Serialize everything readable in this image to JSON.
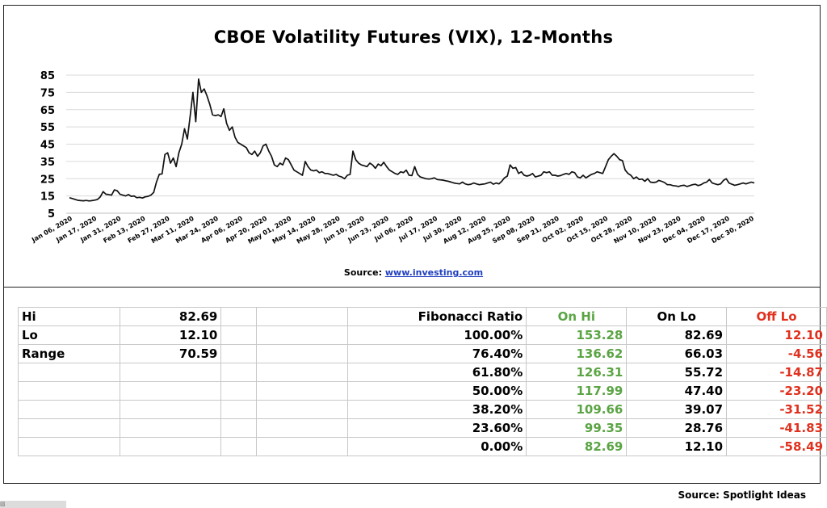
{
  "chart_data": {
    "type": "line",
    "title": "CBOE Volatility Futures (VIX), 12-Months",
    "xlabel": "",
    "ylabel": "",
    "ylim": [
      5,
      85
    ],
    "yticks": [
      5,
      15,
      25,
      35,
      45,
      55,
      65,
      75,
      85
    ],
    "grid": "horizontal",
    "x_tick_labels": [
      "Jan 06, 2020",
      "Jan 17, 2020",
      "Jan 31, 2020",
      "Feb 13, 2020",
      "Feb 27, 2020",
      "Mar 11, 2020",
      "Mar 24, 2020",
      "Apr 06, 2020",
      "Apr 20, 2020",
      "May 01, 2020",
      "May 14, 2020",
      "May 28, 2020",
      "Jun 10, 2020",
      "Jun 23, 2020",
      "Jul 06, 2020",
      "Jul 17, 2020",
      "Jul 30, 2020",
      "Aug 12, 2020",
      "Aug 25, 2020",
      "Sep 08, 2020",
      "Sep 21, 2020",
      "Oct 02, 2020",
      "Oct 15, 2020",
      "Oct 28, 2020",
      "Nov 10, 2020",
      "Nov 23, 2020",
      "Dec 04, 2020",
      "Dec 17, 2020",
      "Dec 30, 2020"
    ],
    "series": [
      {
        "values": [
          14,
          13.5,
          13,
          12.5,
          12.3,
          12.2,
          12.4,
          12.1,
          12.3,
          12.6,
          13,
          14.5,
          17.5,
          16,
          15.8,
          15.5,
          18.5,
          18,
          16,
          15.5,
          15,
          15.8,
          14.8,
          15,
          14,
          14.2,
          13.8,
          14.5,
          14.8,
          15.5,
          17,
          23,
          27.5,
          27.8,
          39,
          40,
          34,
          37,
          32,
          40,
          45,
          54,
          48,
          61,
          75,
          58,
          82.7,
          75,
          77,
          73,
          68,
          62,
          61.5,
          62,
          61,
          65.5,
          57,
          53,
          55,
          49,
          46,
          45,
          44,
          43,
          40,
          39,
          41,
          38,
          40,
          44,
          45,
          41,
          38,
          33,
          32,
          34,
          33,
          37,
          36,
          33,
          30,
          29,
          28,
          27,
          35,
          32,
          30,
          29.5,
          30,
          28.5,
          29,
          28,
          28,
          27.5,
          27,
          27.5,
          26.5,
          26,
          25,
          27,
          27.5,
          41,
          36,
          34,
          33,
          32.5,
          32,
          34,
          33,
          31,
          33.5,
          32.5,
          34.5,
          32,
          30,
          29,
          28,
          27.5,
          29,
          28.5,
          30,
          27,
          26.8,
          32,
          27.5,
          26,
          25.5,
          25,
          24.8,
          25,
          25.5,
          24.5,
          24.3,
          24.2,
          23.8,
          23.5,
          23,
          22.5,
          22.2,
          22,
          23,
          22,
          21.5,
          21.8,
          22.5,
          22,
          21.5,
          21.8,
          22,
          22.5,
          23,
          21.8,
          22.5,
          22,
          23.5,
          25.5,
          26.5,
          33,
          31,
          31.5,
          28,
          29,
          27,
          26.5,
          27,
          28,
          26,
          26.5,
          27,
          29,
          28.5,
          29,
          27,
          27,
          26.5,
          26.8,
          27.5,
          28,
          27.5,
          29,
          28.5,
          26,
          25.5,
          27,
          25.5,
          26.5,
          27.5,
          28,
          29,
          28.5,
          28,
          32,
          36,
          38,
          39.5,
          38,
          36,
          35.5,
          30,
          28,
          27,
          25,
          26,
          24.5,
          24.8,
          23.5,
          25,
          23,
          22.8,
          23,
          24,
          23.5,
          22.8,
          21.5,
          21.5,
          21,
          20.8,
          20.5,
          21,
          21.2,
          20.5,
          21,
          21.5,
          21.8,
          21,
          21.5,
          22.5,
          23,
          24.5,
          22.5,
          22,
          21.5,
          22,
          24,
          25,
          22.5,
          21.8,
          21.2,
          21.5,
          22,
          22.5,
          22,
          22.5,
          23,
          22.5
        ]
      }
    ],
    "source_label": "Source: ",
    "source_link": "www.investing.com"
  },
  "table": {
    "rows": [
      {
        "c1": "Hi",
        "c2": "82.69",
        "c3": "",
        "c4": "",
        "c5": "Fibonacci  Ratio",
        "c6": "On Hi",
        "c7": "On Lo",
        "c8": "Off Lo"
      },
      {
        "c1": "Lo",
        "c2": "12.10",
        "c3": "",
        "c4": "",
        "c5": "100.00%",
        "c6": "153.28",
        "c7": "82.69",
        "c8": "12.10"
      },
      {
        "c1": "Range",
        "c2": "70.59",
        "c3": "",
        "c4": "",
        "c5": "76.40%",
        "c6": "136.62",
        "c7": "66.03",
        "c8": "-4.56"
      },
      {
        "c1": "",
        "c2": "",
        "c3": "",
        "c4": "",
        "c5": "61.80%",
        "c6": "126.31",
        "c7": "55.72",
        "c8": "-14.87"
      },
      {
        "c1": "",
        "c2": "",
        "c3": "",
        "c4": "",
        "c5": "50.00%",
        "c6": "117.99",
        "c7": "47.40",
        "c8": "-23.20"
      },
      {
        "c1": "",
        "c2": "",
        "c3": "",
        "c4": "",
        "c5": "38.20%",
        "c6": "109.66",
        "c7": "39.07",
        "c8": "-31.52"
      },
      {
        "c1": "",
        "c2": "",
        "c3": "",
        "c4": "",
        "c5": "23.60%",
        "c6": "99.35",
        "c7": "28.76",
        "c8": "-41.83"
      },
      {
        "c1": "",
        "c2": "",
        "c3": "",
        "c4": "",
        "c5": "0.00%",
        "c6": "82.69",
        "c7": "12.10",
        "c8": "-58.49"
      }
    ]
  },
  "footer": {
    "source": "Source: Spotlight Ideas"
  },
  "colors": {
    "line": "#111111",
    "grid": "#d9d9d9",
    "on_hi": "#5aa444",
    "off_lo": "#e0301e",
    "link": "#1f3fbf"
  }
}
